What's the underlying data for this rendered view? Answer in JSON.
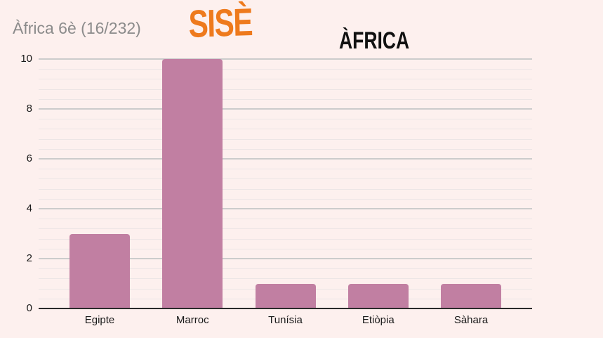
{
  "header": {
    "title": "Àfrica 6è (16/232)",
    "logo_text": "SISÈ",
    "heading": "ÀFRICA"
  },
  "colors": {
    "background": "#fdf0ee",
    "bar": "#c17fa2",
    "major_gridline": "#cccccc",
    "minor_gridline": "#ece5e5",
    "baseline": "#2b2b2b",
    "title_text": "#8b8b8b",
    "logo_orange": "#ee7a1d",
    "heading_text": "#111111",
    "axis_text": "#1a1a1a"
  },
  "chart_data": {
    "type": "bar",
    "title": "Àfrica 6è (16/232)",
    "categories": [
      "Egipte",
      "Marroc",
      "Tunísia",
      "Etiòpia",
      "Sàhara"
    ],
    "values": [
      3,
      10,
      1,
      1,
      1
    ],
    "xlabel": "",
    "ylabel": "",
    "ylim": [
      0,
      10
    ],
    "yticks": [
      0,
      2,
      4,
      6,
      8,
      10
    ],
    "minor_divisions_per_major": 5,
    "grid": "horizontal",
    "legend": "none"
  }
}
